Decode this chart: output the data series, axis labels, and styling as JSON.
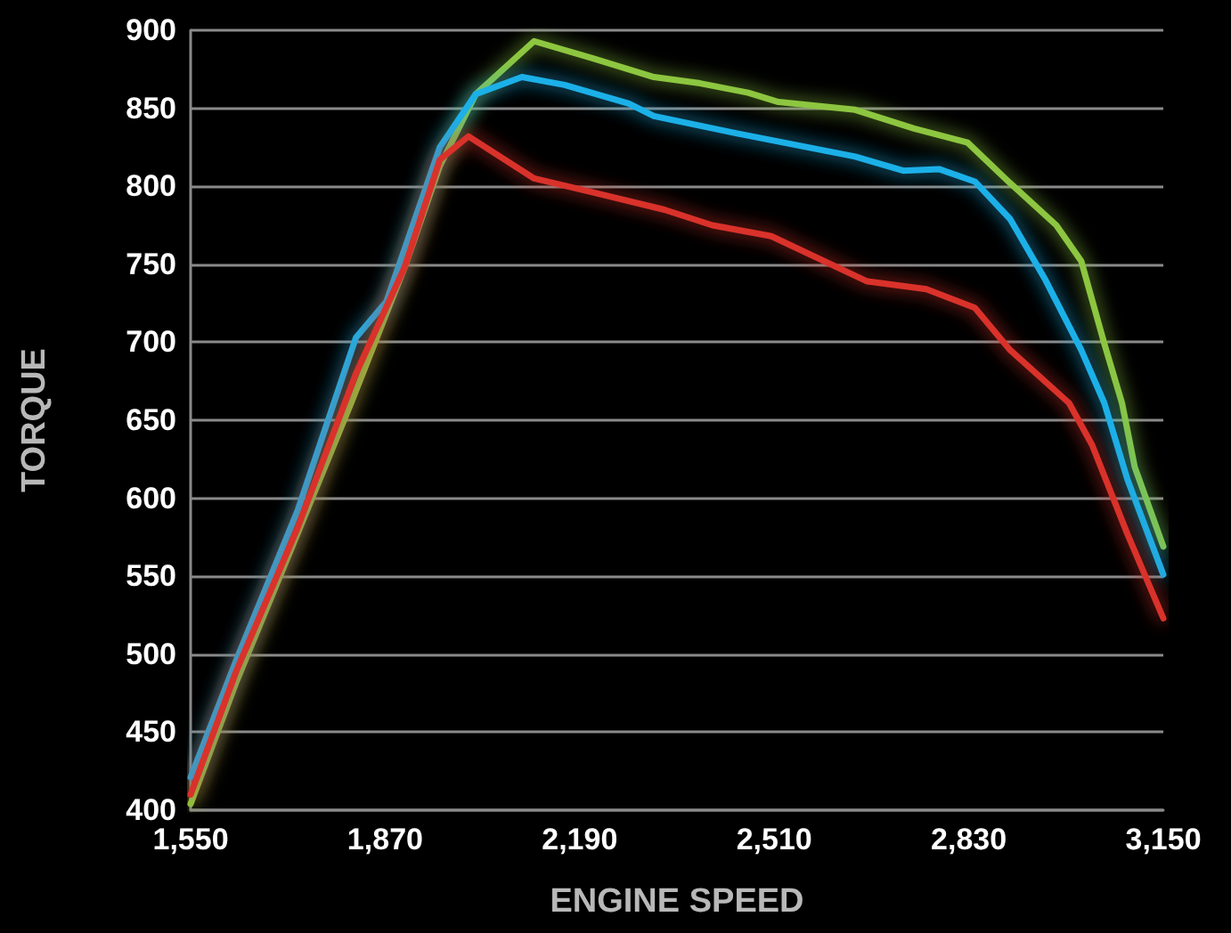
{
  "chart_data": {
    "type": "line",
    "xlabel": "ENGINE SPEED",
    "ylabel": "TORQUE",
    "xlim": [
      1550,
      3150
    ],
    "xticks": [
      {
        "value": 1550,
        "label": "1,550"
      },
      {
        "value": 1870,
        "label": "1,870"
      },
      {
        "value": 2190,
        "label": "2,190"
      },
      {
        "value": 2510,
        "label": "2,510"
      },
      {
        "value": 2830,
        "label": "2,830"
      },
      {
        "value": 3150,
        "label": "3,150"
      }
    ],
    "ylim": [
      400,
      900
    ],
    "yticks": [
      400,
      450,
      500,
      550,
      600,
      650,
      700,
      750,
      800,
      850,
      900
    ],
    "grid": "y",
    "marker": "none",
    "line_style": "solid",
    "series": [
      {
        "color": "#8dc63f",
        "x": [
          1550,
          1626,
          1714,
          1814,
          1902,
          1960,
          2019,
          2115,
          2212,
          2312,
          2388,
          2467,
          2517,
          2643,
          2740,
          2828,
          2898,
          2974,
          3015,
          3053,
          3082,
          3103,
          3150
        ],
        "values": [
          404,
          483,
          566,
          661,
          748,
          813,
          859,
          893,
          882,
          870,
          866,
          860,
          854,
          849,
          837,
          828,
          802,
          775,
          752,
          699,
          661,
          620,
          569
        ]
      },
      {
        "color": "#1ab0e8",
        "x": [
          1550,
          1626,
          1726,
          1822,
          1872,
          1960,
          2019,
          2095,
          2165,
          2271,
          2312,
          2447,
          2643,
          2722,
          2781,
          2840,
          2898,
          2956,
          3015,
          3053,
          3091,
          3150
        ],
        "values": [
          421,
          497,
          592,
          703,
          726,
          825,
          859,
          870,
          865,
          853,
          845,
          834,
          819,
          810,
          811,
          803,
          779,
          740,
          695,
          661,
          612,
          551
        ]
      },
      {
        "color": "#d9312b",
        "x": [
          1550,
          1626,
          1726,
          1822,
          1902,
          1960,
          2007,
          2115,
          2212,
          2329,
          2408,
          2505,
          2663,
          2760,
          2840,
          2898,
          2995,
          3033,
          3091,
          3150
        ],
        "values": [
          410,
          490,
          581,
          680,
          748,
          817,
          832,
          805,
          796,
          785,
          775,
          768,
          739,
          734,
          722,
          695,
          661,
          634,
          577,
          523
        ]
      }
    ]
  }
}
